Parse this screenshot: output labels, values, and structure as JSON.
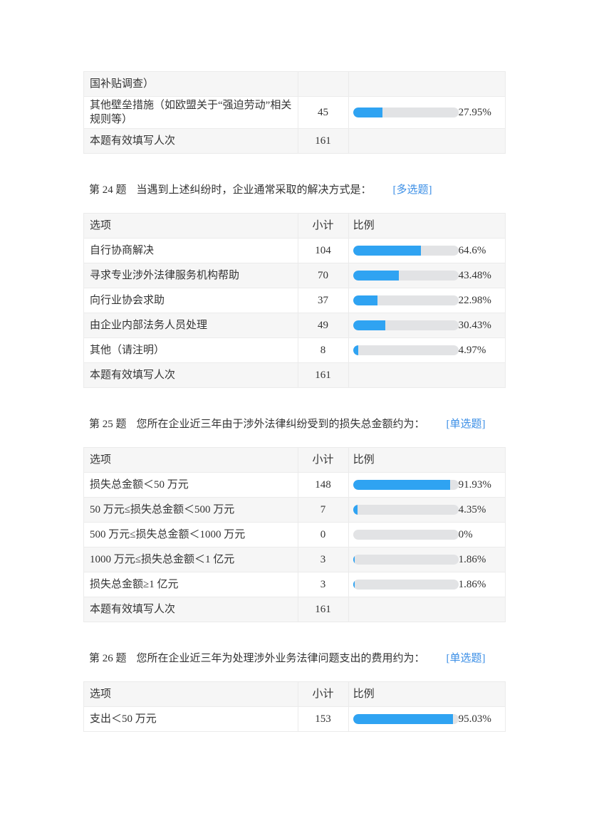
{
  "colors": {
    "bar_fill": "#2fa3f2",
    "bar_track": "#e2e3e5",
    "tag": "#3a8ee6"
  },
  "header": {
    "option": "选项",
    "count": "小计",
    "ratio": "比例"
  },
  "total_label": "本题有效填写人次",
  "sections": [
    {
      "title": null,
      "show_header": false,
      "rows": [
        {
          "option": "国补贴调查）",
          "count": "",
          "percent": null,
          "percent_label": ""
        },
        {
          "option": "其他壁垒措施（如欧盟关于“强迫劳动”相关规则等）",
          "count": "45",
          "percent": 27.95,
          "percent_label": "27.95%"
        }
      ],
      "total": "161"
    },
    {
      "number": "第 24 题",
      "title": "当遇到上述纠纷时，企业通常采取的解决方式是：",
      "tag": "[多选题]",
      "show_header": true,
      "rows": [
        {
          "option": "自行协商解决",
          "count": "104",
          "percent": 64.6,
          "percent_label": "64.6%"
        },
        {
          "option": "寻求专业涉外法律服务机构帮助",
          "count": "70",
          "percent": 43.48,
          "percent_label": "43.48%"
        },
        {
          "option": "向行业协会求助",
          "count": "37",
          "percent": 22.98,
          "percent_label": "22.98%"
        },
        {
          "option": "由企业内部法务人员处理",
          "count": "49",
          "percent": 30.43,
          "percent_label": "30.43%"
        },
        {
          "option": "其他（请注明）",
          "count": "8",
          "percent": 4.97,
          "percent_label": "4.97%"
        }
      ],
      "total": "161"
    },
    {
      "number": "第 25 题",
      "title": "您所在企业近三年由于涉外法律纠纷受到的损失总金额约为：",
      "tag": "[单选题]",
      "show_header": true,
      "rows": [
        {
          "option": "损失总金额＜50 万元",
          "count": "148",
          "percent": 91.93,
          "percent_label": "91.93%"
        },
        {
          "option": "50 万元≤损失总金额＜500 万元",
          "count": "7",
          "percent": 4.35,
          "percent_label": "4.35%"
        },
        {
          "option": "500 万元≤损失总金额＜1000 万元",
          "count": "0",
          "percent": 0,
          "percent_label": "0%"
        },
        {
          "option": "1000 万元≤损失总金额＜1 亿元",
          "count": "3",
          "percent": 1.86,
          "percent_label": "1.86%"
        },
        {
          "option": "损失总金额≥1 亿元",
          "count": "3",
          "percent": 1.86,
          "percent_label": "1.86%"
        }
      ],
      "total": "161"
    },
    {
      "number": "第 26 题",
      "title": "您所在企业近三年为处理涉外业务法律问题支出的费用约为：",
      "tag": "[单选题]",
      "show_header": true,
      "rows": [
        {
          "option": "支出＜50 万元",
          "count": "153",
          "percent": 95.03,
          "percent_label": "95.03%"
        }
      ],
      "total": null
    }
  ]
}
